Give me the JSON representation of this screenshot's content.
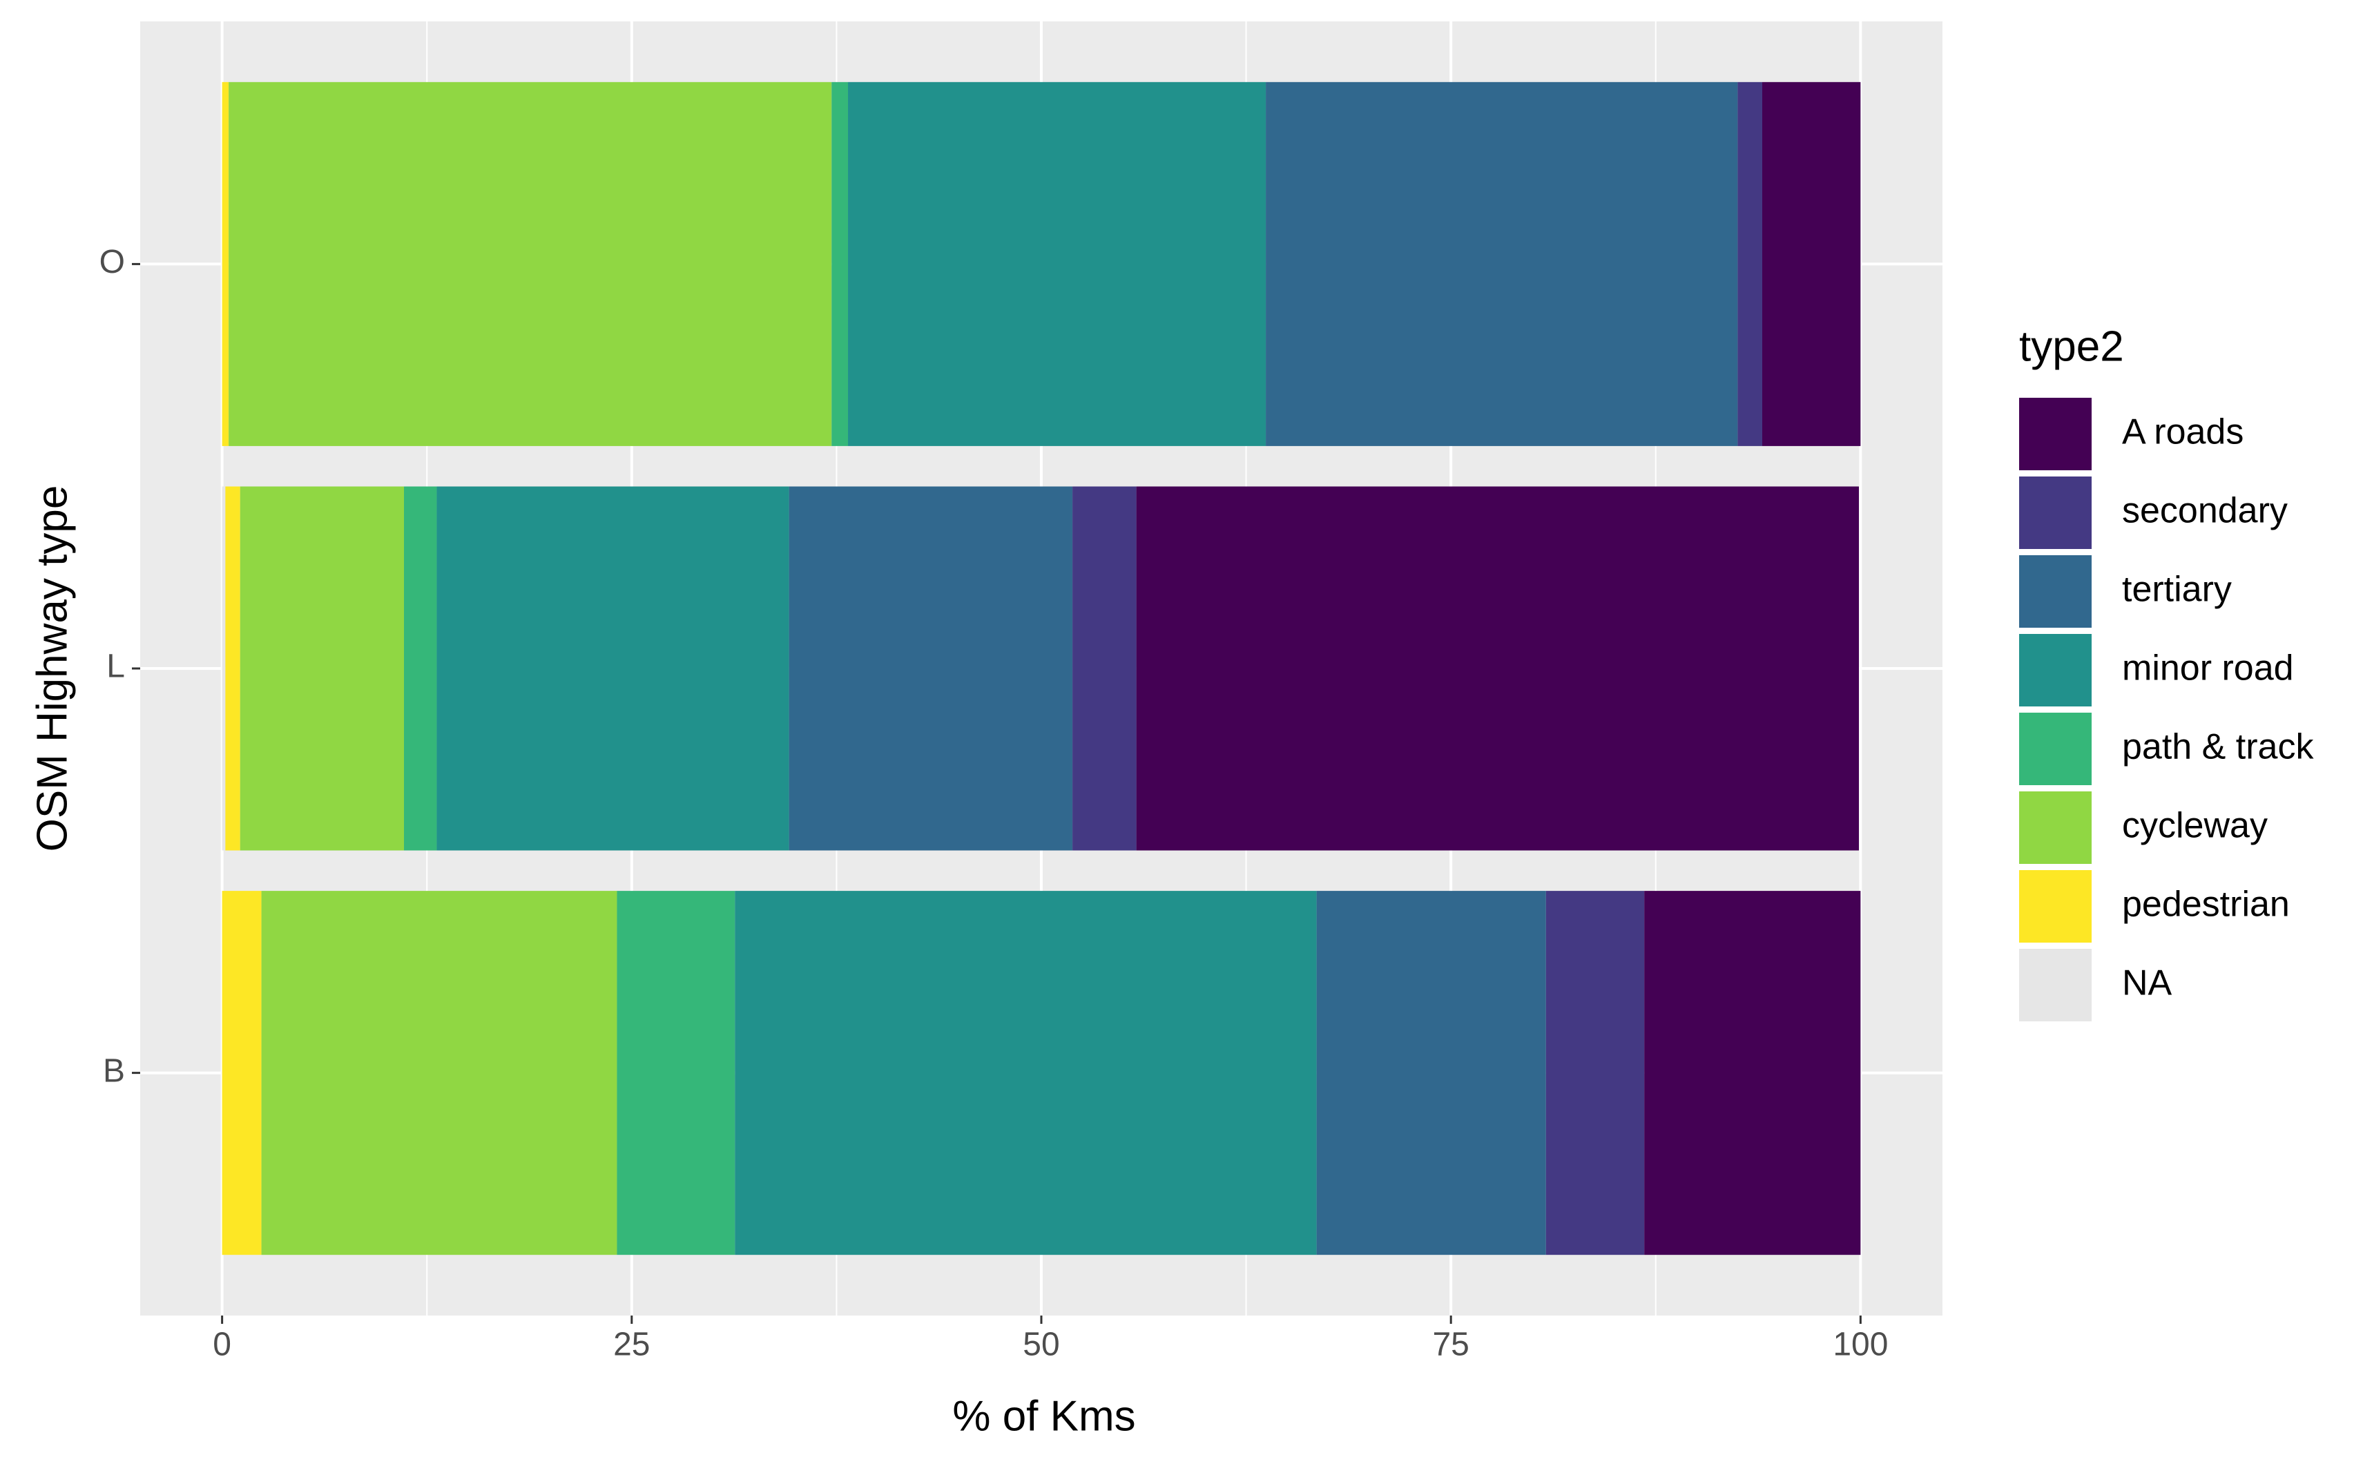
{
  "chart_data": {
    "type": "stacked-barh",
    "x_label": "% of Kms",
    "y_label": "OSM Highway type",
    "legend_title": "type2",
    "categories": [
      "B",
      "L",
      "O"
    ],
    "series": [
      {
        "name": "A roads",
        "color": "#440154",
        "values": [
          13.2,
          44.1,
          6.0
        ]
      },
      {
        "name": "secondary",
        "color": "#443983",
        "values": [
          6.0,
          3.9,
          1.5
        ]
      },
      {
        "name": "tertiary",
        "color": "#31688e",
        "values": [
          14.0,
          17.3,
          28.8
        ]
      },
      {
        "name": "minor road",
        "color": "#21918c",
        "values": [
          35.5,
          21.5,
          25.5
        ]
      },
      {
        "name": "path & track",
        "color": "#35b779",
        "values": [
          7.2,
          2.0,
          1.0
        ]
      },
      {
        "name": "cycleway",
        "color": "#90d743",
        "values": [
          21.7,
          10.0,
          36.8
        ]
      },
      {
        "name": "pedestrian",
        "color": "#fde725",
        "values": [
          2.4,
          0.9,
          0.4
        ]
      },
      {
        "name": "NA",
        "color": "#e6e6e6",
        "values": [
          0,
          0.2,
          0
        ]
      }
    ],
    "xlim": [
      -5,
      105
    ],
    "xticks": [
      0,
      25,
      50,
      75,
      100
    ],
    "grid": true,
    "legend": "right"
  }
}
